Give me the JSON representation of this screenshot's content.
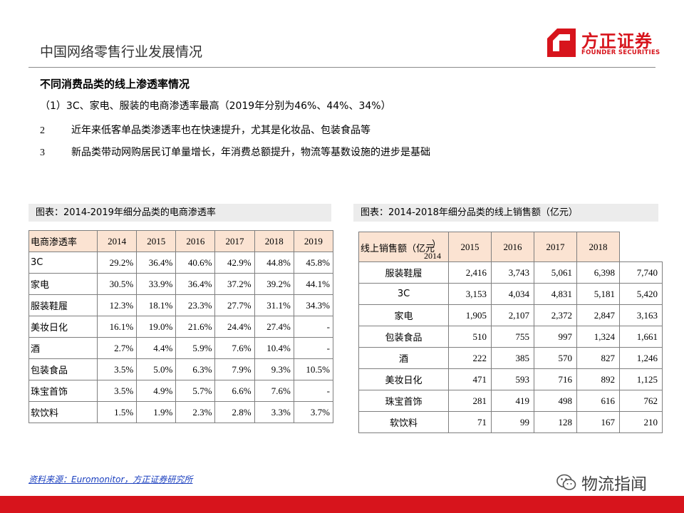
{
  "header": {
    "title": "中国网络零售行业发展情况",
    "logo_cn": "方正证券",
    "logo_en": "FOUNDER SECURITIES"
  },
  "content": {
    "subtitle": "不同消费品类的线上渗透率情况",
    "line1": "（1）3C、家电、服装的电商渗透率最高（2019年分别为46%、44%、34%）",
    "bullets": [
      {
        "num": "2",
        "text": "近年来低客单品类渗透率也在快速提升，尤其是化妆品、包装食品等"
      },
      {
        "num": "3",
        "text": "新品类带动网购居民订单量增长，年消费总额提升，物流等基数设施的进步是基础"
      }
    ]
  },
  "left_table": {
    "caption": "图表：2014-2019年细分品类的电商渗透率",
    "header": [
      "电商渗透率",
      "2014",
      "2015",
      "2016",
      "2017",
      "2018",
      "2019"
    ],
    "rows": [
      [
        "3C",
        "29.2%",
        "36.4%",
        "40.6%",
        "42.9%",
        "44.8%",
        "45.8%"
      ],
      [
        "家电",
        "30.5%",
        "33.9%",
        "36.4%",
        "37.2%",
        "39.2%",
        "44.1%"
      ],
      [
        "服装鞋履",
        "12.3%",
        "18.1%",
        "23.3%",
        "27.7%",
        "31.1%",
        "34.3%"
      ],
      [
        "美妆日化",
        "16.1%",
        "19.0%",
        "21.6%",
        "24.4%",
        "27.4%",
        "-"
      ],
      [
        "酒",
        "2.7%",
        "4.4%",
        "5.9%",
        "7.6%",
        "10.4%",
        "-"
      ],
      [
        "包装食品",
        "3.5%",
        "5.0%",
        "6.3%",
        "7.9%",
        "9.3%",
        "10.5%"
      ],
      [
        "珠宝首饰",
        "3.5%",
        "4.9%",
        "5.7%",
        "6.6%",
        "7.6%",
        "-"
      ],
      [
        "软饮料",
        "1.5%",
        "1.9%",
        "2.3%",
        "2.8%",
        "3.3%",
        "3.7%"
      ]
    ]
  },
  "right_table": {
    "caption": "图表：2014-2018年细分品类的线上销售额（亿元）",
    "header_label": "线上销售额（亿元",
    "header_paren": "）",
    "header_first_year": "2014",
    "header_years": [
      "2015",
      "2016",
      "2017",
      "2018"
    ],
    "rows": [
      [
        "服装鞋履",
        "2,416",
        "3,743",
        "5,061",
        "6,398",
        "7,740"
      ],
      [
        "3C",
        "3,153",
        "4,034",
        "4,831",
        "5,181",
        "5,420"
      ],
      [
        "家电",
        "1,905",
        "2,107",
        "2,372",
        "2,847",
        "3,163"
      ],
      [
        "包装食品",
        "510",
        "755",
        "997",
        "1,324",
        "1,661"
      ],
      [
        "酒",
        "222",
        "385",
        "570",
        "827",
        "1,246"
      ],
      [
        "美妆日化",
        "471",
        "593",
        "716",
        "892",
        "1,125"
      ],
      [
        "珠宝首饰",
        "281",
        "419",
        "498",
        "616",
        "762"
      ],
      [
        "软饮料",
        "71",
        "99",
        "128",
        "167",
        "210"
      ]
    ]
  },
  "footer": {
    "source": "资料来源：Euromonitor，方正证券研究所",
    "watermark": "物流指闻"
  },
  "colors": {
    "brand_red": "#d7141c",
    "header_fill": "#fbe3d2",
    "caption_fill": "#ececec"
  }
}
